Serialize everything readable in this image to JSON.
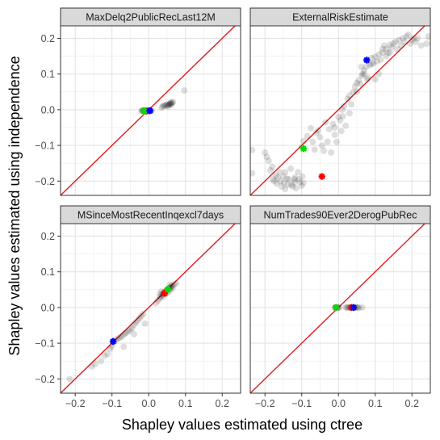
{
  "chart_data": {
    "type": "scatter",
    "layout": "facet-grid-2x2",
    "xlabel": "Shapley values estimated using ctree",
    "ylabel": "Shapley values estimated using independence",
    "xlim": [
      -0.24,
      0.25
    ],
    "ylim": [
      -0.24,
      0.235
    ],
    "xticks": [
      -0.2,
      -0.1,
      0.0,
      0.1,
      0.2
    ],
    "yticks": [
      -0.2,
      -0.1,
      0.0,
      0.1,
      0.2
    ],
    "xtick_labels": [
      "−0.2",
      "−0.1",
      "0.0",
      "0.1",
      "0.2"
    ],
    "ytick_labels": [
      "−0.2",
      "−0.1",
      "0.0",
      "0.1",
      "0.2"
    ],
    "grid": true,
    "reference_line": {
      "type": "identity",
      "color": "#e41a1c"
    },
    "highlight_colors": {
      "red": "#ff0000",
      "green": "#00dd00",
      "blue": "#0000ff"
    },
    "point_color": "#000000",
    "point_opacity": 0.13,
    "panels": [
      {
        "title": "MaxDelq2PublicRecLast12M",
        "points": [
          [
            -0.02,
            -0.004
          ],
          [
            -0.018,
            -0.003
          ],
          [
            -0.016,
            -0.002
          ],
          [
            -0.014,
            -0.004
          ],
          [
            -0.012,
            -0.003
          ],
          [
            -0.01,
            -0.002
          ],
          [
            -0.008,
            -0.004
          ],
          [
            -0.006,
            -0.003
          ],
          [
            -0.004,
            -0.002
          ],
          [
            -0.002,
            -0.004
          ],
          [
            0.0,
            -0.003
          ],
          [
            0.002,
            -0.002
          ],
          [
            0.004,
            -0.003
          ],
          [
            0.006,
            -0.004
          ],
          [
            0.008,
            -0.002
          ],
          [
            -0.015,
            -0.001
          ],
          [
            -0.005,
            -0.001
          ],
          [
            0.003,
            -0.001
          ],
          [
            0.035,
            0.006
          ],
          [
            0.038,
            0.009
          ],
          [
            0.041,
            0.012
          ],
          [
            0.044,
            0.011
          ],
          [
            0.047,
            0.014
          ],
          [
            0.05,
            0.012
          ],
          [
            0.053,
            0.015
          ],
          [
            0.056,
            0.013
          ],
          [
            0.058,
            0.017
          ],
          [
            0.06,
            0.019
          ],
          [
            0.062,
            0.02
          ],
          [
            0.064,
            0.018
          ],
          [
            0.066,
            0.022
          ],
          [
            0.052,
            0.009
          ],
          [
            0.057,
            0.016
          ],
          [
            0.061,
            0.014
          ],
          [
            0.097,
            0.054
          ]
        ],
        "highlights": {
          "red": [
            -0.006,
            -0.004
          ],
          "green": [
            -0.012,
            -0.004
          ],
          "blue": [
            0.003,
            -0.003
          ]
        }
      },
      {
        "title": "ExternalRiskEstimate",
        "points": [
          [
            -0.235,
            -0.113
          ],
          [
            -0.235,
            -0.178
          ],
          [
            -0.2,
            -0.12
          ],
          [
            -0.195,
            -0.132
          ],
          [
            -0.19,
            -0.143
          ],
          [
            -0.185,
            -0.17
          ],
          [
            -0.18,
            -0.16
          ],
          [
            -0.178,
            -0.195
          ],
          [
            -0.175,
            -0.2
          ],
          [
            -0.17,
            -0.185
          ],
          [
            -0.168,
            -0.207
          ],
          [
            -0.165,
            -0.19
          ],
          [
            -0.16,
            -0.175
          ],
          [
            -0.158,
            -0.2
          ],
          [
            -0.155,
            -0.215
          ],
          [
            -0.15,
            -0.187
          ],
          [
            -0.148,
            -0.205
          ],
          [
            -0.145,
            -0.175
          ],
          [
            -0.14,
            -0.193
          ],
          [
            -0.138,
            -0.21
          ],
          [
            -0.135,
            -0.195
          ],
          [
            -0.13,
            -0.165
          ],
          [
            -0.128,
            -0.21
          ],
          [
            -0.125,
            -0.215
          ],
          [
            -0.12,
            -0.204
          ],
          [
            -0.118,
            -0.19
          ],
          [
            -0.115,
            -0.22
          ],
          [
            -0.11,
            -0.175
          ],
          [
            -0.108,
            -0.195
          ],
          [
            -0.105,
            -0.203
          ],
          [
            -0.1,
            -0.213
          ],
          [
            -0.098,
            -0.187
          ],
          [
            -0.095,
            -0.205
          ],
          [
            -0.145,
            -0.222
          ],
          [
            -0.12,
            -0.195
          ],
          [
            -0.1,
            -0.105
          ],
          [
            -0.095,
            -0.088
          ],
          [
            -0.085,
            -0.074
          ],
          [
            -0.075,
            -0.052
          ],
          [
            -0.07,
            -0.09
          ],
          [
            -0.065,
            -0.112
          ],
          [
            -0.06,
            -0.065
          ],
          [
            -0.055,
            -0.058
          ],
          [
            -0.05,
            -0.077
          ],
          [
            -0.045,
            -0.1
          ],
          [
            -0.04,
            -0.115
          ],
          [
            -0.035,
            -0.035
          ],
          [
            -0.03,
            -0.09
          ],
          [
            -0.025,
            -0.055
          ],
          [
            -0.02,
            -0.12
          ],
          [
            -0.015,
            -0.04
          ],
          [
            -0.01,
            -0.07
          ],
          [
            -0.005,
            -0.09
          ],
          [
            0.0,
            -0.02
          ],
          [
            0.005,
            -0.03
          ],
          [
            0.008,
            -0.06
          ],
          [
            0.012,
            -0.018
          ],
          [
            0.015,
            0.01
          ],
          [
            0.02,
            -0.045
          ],
          [
            0.025,
            0.03
          ],
          [
            0.03,
            -0.01
          ],
          [
            0.035,
            0.015
          ],
          [
            0.04,
            0.05
          ],
          [
            0.045,
            0.065
          ],
          [
            0.05,
            0.075
          ],
          [
            0.055,
            0.082
          ],
          [
            0.06,
            0.072
          ],
          [
            0.062,
            0.12
          ],
          [
            0.064,
            0.095
          ],
          [
            0.065,
            0.1
          ],
          [
            0.07,
            0.11
          ],
          [
            0.075,
            0.12
          ],
          [
            0.078,
            0.085
          ],
          [
            0.08,
            0.09
          ],
          [
            0.085,
            0.125
          ],
          [
            0.09,
            0.128
          ],
          [
            0.095,
            0.13
          ],
          [
            0.1,
            0.148
          ],
          [
            0.105,
            0.135
          ],
          [
            0.11,
            0.155
          ],
          [
            0.115,
            0.14
          ],
          [
            0.12,
            0.16
          ],
          [
            0.125,
            0.18
          ],
          [
            0.13,
            0.17
          ],
          [
            0.135,
            0.16
          ],
          [
            0.14,
            0.182
          ],
          [
            0.145,
            0.175
          ],
          [
            0.15,
            0.185
          ],
          [
            0.155,
            0.19
          ],
          [
            0.16,
            0.17
          ],
          [
            0.165,
            0.195
          ],
          [
            0.17,
            0.18
          ],
          [
            0.175,
            0.2
          ],
          [
            0.18,
            0.19
          ],
          [
            0.185,
            0.205
          ],
          [
            0.19,
            0.21
          ],
          [
            0.195,
            0.185
          ],
          [
            0.2,
            0.195
          ],
          [
            0.205,
            0.2
          ],
          [
            0.21,
            0.19
          ],
          [
            0.215,
            0.2
          ],
          [
            0.225,
            0.18
          ],
          [
            0.24,
            0.185
          ],
          [
            0.245,
            0.205
          ],
          [
            0.1,
            0.085
          ],
          [
            0.11,
            0.1
          ],
          [
            0.12,
            0.17
          ],
          [
            0.13,
            0.15
          ],
          [
            0.14,
            0.16
          ],
          [
            0.09,
            0.145
          ],
          [
            0.07,
            0.1
          ],
          [
            0.05,
            0.05
          ],
          [
            0.03,
            0.04
          ],
          [
            0.01,
            0.0
          ],
          [
            -0.01,
            -0.05
          ]
        ],
        "highlights": {
          "red": [
            -0.045,
            -0.187
          ],
          "green": [
            -0.095,
            -0.109
          ],
          "blue": [
            0.077,
            0.139
          ]
        }
      },
      {
        "title": "MSinceMostRecentInqexcl7days",
        "points": [
          [
            -0.215,
            -0.2
          ],
          [
            -0.155,
            -0.165
          ],
          [
            -0.145,
            -0.158
          ],
          [
            -0.13,
            -0.15
          ],
          [
            -0.12,
            -0.135
          ],
          [
            -0.112,
            -0.13
          ],
          [
            -0.105,
            -0.115
          ],
          [
            -0.1,
            -0.108
          ],
          [
            -0.095,
            -0.098
          ],
          [
            -0.09,
            -0.092
          ],
          [
            -0.085,
            -0.088
          ],
          [
            -0.08,
            -0.085
          ],
          [
            -0.075,
            -0.082
          ],
          [
            -0.07,
            -0.078
          ],
          [
            -0.065,
            -0.073
          ],
          [
            -0.06,
            -0.07
          ],
          [
            -0.055,
            -0.066
          ],
          [
            -0.05,
            -0.062
          ],
          [
            -0.045,
            -0.058
          ],
          [
            -0.04,
            -0.048
          ],
          [
            -0.035,
            -0.042
          ],
          [
            -0.03,
            -0.036
          ],
          [
            -0.025,
            -0.03
          ],
          [
            -0.02,
            -0.024
          ],
          [
            -0.015,
            -0.018
          ],
          [
            -0.068,
            -0.11
          ],
          [
            -0.04,
            -0.075
          ],
          [
            -0.01,
            -0.045
          ],
          [
            0.02,
            0.012
          ],
          [
            0.025,
            0.02
          ],
          [
            0.03,
            0.025
          ],
          [
            0.032,
            0.03
          ],
          [
            0.035,
            0.034
          ],
          [
            0.038,
            0.037
          ],
          [
            0.04,
            0.04
          ],
          [
            0.042,
            0.043
          ],
          [
            0.045,
            0.045
          ],
          [
            0.048,
            0.048
          ],
          [
            0.05,
            0.05
          ],
          [
            0.052,
            0.052
          ],
          [
            0.055,
            0.054
          ],
          [
            0.058,
            0.056
          ],
          [
            0.06,
            0.058
          ],
          [
            0.062,
            0.06
          ],
          [
            0.065,
            0.062
          ],
          [
            0.07,
            0.065
          ],
          [
            0.075,
            0.068
          ],
          [
            0.04,
            0.03
          ],
          [
            0.05,
            0.04
          ],
          [
            0.06,
            0.05
          ],
          [
            0.045,
            0.038
          ],
          [
            0.055,
            0.045
          ],
          [
            0.035,
            0.045
          ],
          [
            0.065,
            0.055
          ],
          [
            0.03,
            0.038
          ],
          [
            0.058,
            0.064
          ]
        ],
        "highlights": {
          "red": [
            0.043,
            0.04
          ],
          "green": [
            0.052,
            0.051
          ],
          "blue": [
            -0.097,
            -0.095
          ]
        }
      },
      {
        "title": "NumTrades90Ever2DerogPubRec",
        "points": [
          [
            -0.01,
            0.0
          ],
          [
            -0.008,
            0.001
          ],
          [
            -0.006,
            -0.001
          ],
          [
            -0.004,
            0.0
          ],
          [
            -0.002,
            0.001
          ],
          [
            0.0,
            -0.001
          ],
          [
            0.002,
            0.0
          ],
          [
            0.02,
            0.0
          ],
          [
            0.023,
            0.001
          ],
          [
            0.026,
            -0.001
          ],
          [
            0.029,
            0.0
          ],
          [
            0.032,
            0.001
          ],
          [
            0.035,
            -0.001
          ],
          [
            0.038,
            0.0
          ],
          [
            0.041,
            0.001
          ],
          [
            0.044,
            -0.001
          ],
          [
            0.047,
            0.0
          ],
          [
            0.05,
            0.001
          ],
          [
            0.053,
            0.0
          ],
          [
            0.056,
            -0.001
          ],
          [
            0.065,
            0.0
          ]
        ],
        "highlights": {
          "red": [
            0.035,
            0.0
          ],
          "green": [
            -0.007,
            0.0
          ],
          "blue": [
            0.041,
            0.0
          ]
        }
      }
    ]
  }
}
